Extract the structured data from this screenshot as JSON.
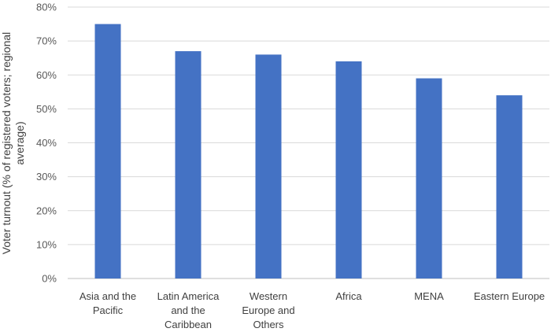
{
  "chart_data": {
    "type": "bar",
    "title": "",
    "xlabel": "",
    "ylabel_lines": [
      "Voter turnout (% of registered voters; regional",
      "average)"
    ],
    "categories": [
      [
        "Asia and the",
        "Pacific"
      ],
      [
        "Latin America",
        "and the",
        "Caribbean"
      ],
      [
        "Western",
        "Europe and",
        "Others"
      ],
      [
        "Africa"
      ],
      [
        "MENA"
      ],
      [
        "Eastern Europe"
      ]
    ],
    "values": [
      75,
      67,
      66,
      64,
      59,
      54
    ],
    "ylim": [
      0,
      80
    ],
    "yticks": [
      0,
      10,
      20,
      30,
      40,
      50,
      60,
      70,
      80
    ],
    "ytick_labels": [
      "0%",
      "10%",
      "20%",
      "30%",
      "40%",
      "50%",
      "60%",
      "70%",
      "80%"
    ],
    "grid": true,
    "legend": "none",
    "colors": {
      "bar": "#4472c4",
      "grid": "#d9d9d9",
      "axis": "#bfbfbf"
    }
  }
}
